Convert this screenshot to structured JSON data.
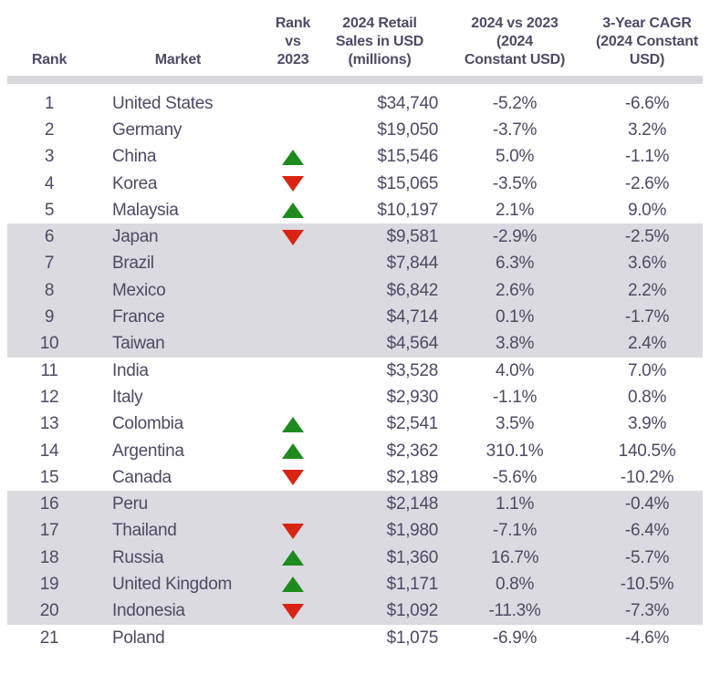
{
  "chart_data": {
    "type": "table",
    "columns": [
      {
        "key": "rank",
        "label": "Rank"
      },
      {
        "key": "market",
        "label": "Market"
      },
      {
        "key": "change",
        "label": "Rank\nvs\n2023"
      },
      {
        "key": "sales",
        "label": "2024 Retail\nSales in USD\n(millions)"
      },
      {
        "key": "yoy",
        "label": "2024 vs 2023\n(2024\nConstant USD)"
      },
      {
        "key": "cagr",
        "label": "3-Year CAGR\n(2024 Constant\nUSD)"
      }
    ],
    "rows": [
      {
        "rank": "1",
        "market": "United States",
        "change": "",
        "sales": "$34,740",
        "yoy": "-5.2%",
        "cagr": "-6.6%"
      },
      {
        "rank": "2",
        "market": "Germany",
        "change": "",
        "sales": "$19,050",
        "yoy": "-3.7%",
        "cagr": "3.2%"
      },
      {
        "rank": "3",
        "market": "China",
        "change": "up",
        "sales": "$15,546",
        "yoy": "5.0%",
        "cagr": "-1.1%"
      },
      {
        "rank": "4",
        "market": "Korea",
        "change": "down",
        "sales": "$15,065",
        "yoy": "-3.5%",
        "cagr": "-2.6%"
      },
      {
        "rank": "5",
        "market": "Malaysia",
        "change": "up",
        "sales": "$10,197",
        "yoy": "2.1%",
        "cagr": "9.0%"
      },
      {
        "rank": "6",
        "market": "Japan",
        "change": "down",
        "sales": "$9,581",
        "yoy": "-2.9%",
        "cagr": "-2.5%"
      },
      {
        "rank": "7",
        "market": "Brazil",
        "change": "",
        "sales": "$7,844",
        "yoy": "6.3%",
        "cagr": "3.6%"
      },
      {
        "rank": "8",
        "market": "Mexico",
        "change": "",
        "sales": "$6,842",
        "yoy": "2.6%",
        "cagr": "2.2%"
      },
      {
        "rank": "9",
        "market": "France",
        "change": "",
        "sales": "$4,714",
        "yoy": "0.1%",
        "cagr": "-1.7%"
      },
      {
        "rank": "10",
        "market": "Taiwan",
        "change": "",
        "sales": "$4,564",
        "yoy": "3.8%",
        "cagr": "2.4%"
      },
      {
        "rank": "11",
        "market": "India",
        "change": "",
        "sales": "$3,528",
        "yoy": "4.0%",
        "cagr": "7.0%"
      },
      {
        "rank": "12",
        "market": "Italy",
        "change": "",
        "sales": "$2,930",
        "yoy": "-1.1%",
        "cagr": "0.8%"
      },
      {
        "rank": "13",
        "market": "Colombia",
        "change": "up",
        "sales": "$2,541",
        "yoy": "3.5%",
        "cagr": "3.9%"
      },
      {
        "rank": "14",
        "market": "Argentina",
        "change": "up",
        "sales": "$2,362",
        "yoy": "310.1%",
        "cagr": "140.5%"
      },
      {
        "rank": "15",
        "market": "Canada",
        "change": "down",
        "sales": "$2,189",
        "yoy": "-5.6%",
        "cagr": "-10.2%"
      },
      {
        "rank": "16",
        "market": "Peru",
        "change": "",
        "sales": "$2,148",
        "yoy": "1.1%",
        "cagr": "-0.4%"
      },
      {
        "rank": "17",
        "market": "Thailand",
        "change": "down",
        "sales": "$1,980",
        "yoy": "-7.1%",
        "cagr": "-6.4%"
      },
      {
        "rank": "18",
        "market": "Russia",
        "change": "up",
        "sales": "$1,360",
        "yoy": "16.7%",
        "cagr": "-5.7%"
      },
      {
        "rank": "19",
        "market": "United Kingdom",
        "change": "up",
        "sales": "$1,171",
        "yoy": "0.8%",
        "cagr": "-10.5%"
      },
      {
        "rank": "20",
        "market": "Indonesia",
        "change": "down",
        "sales": "$1,092",
        "yoy": "-11.3%",
        "cagr": "-7.3%"
      },
      {
        "rank": "21",
        "market": "Poland",
        "change": "",
        "sales": "$1,075",
        "yoy": "-6.9%",
        "cagr": "-4.6%"
      }
    ],
    "shaded_rank_ranges": [
      [
        6,
        10
      ],
      [
        16,
        20
      ]
    ]
  },
  "colors": {
    "text": "#4e4a64",
    "row_band": "#dbdae0",
    "header_divider": "#d8d7dd",
    "up_arrow": "#1e8b1e",
    "down_arrow": "#da2413"
  }
}
